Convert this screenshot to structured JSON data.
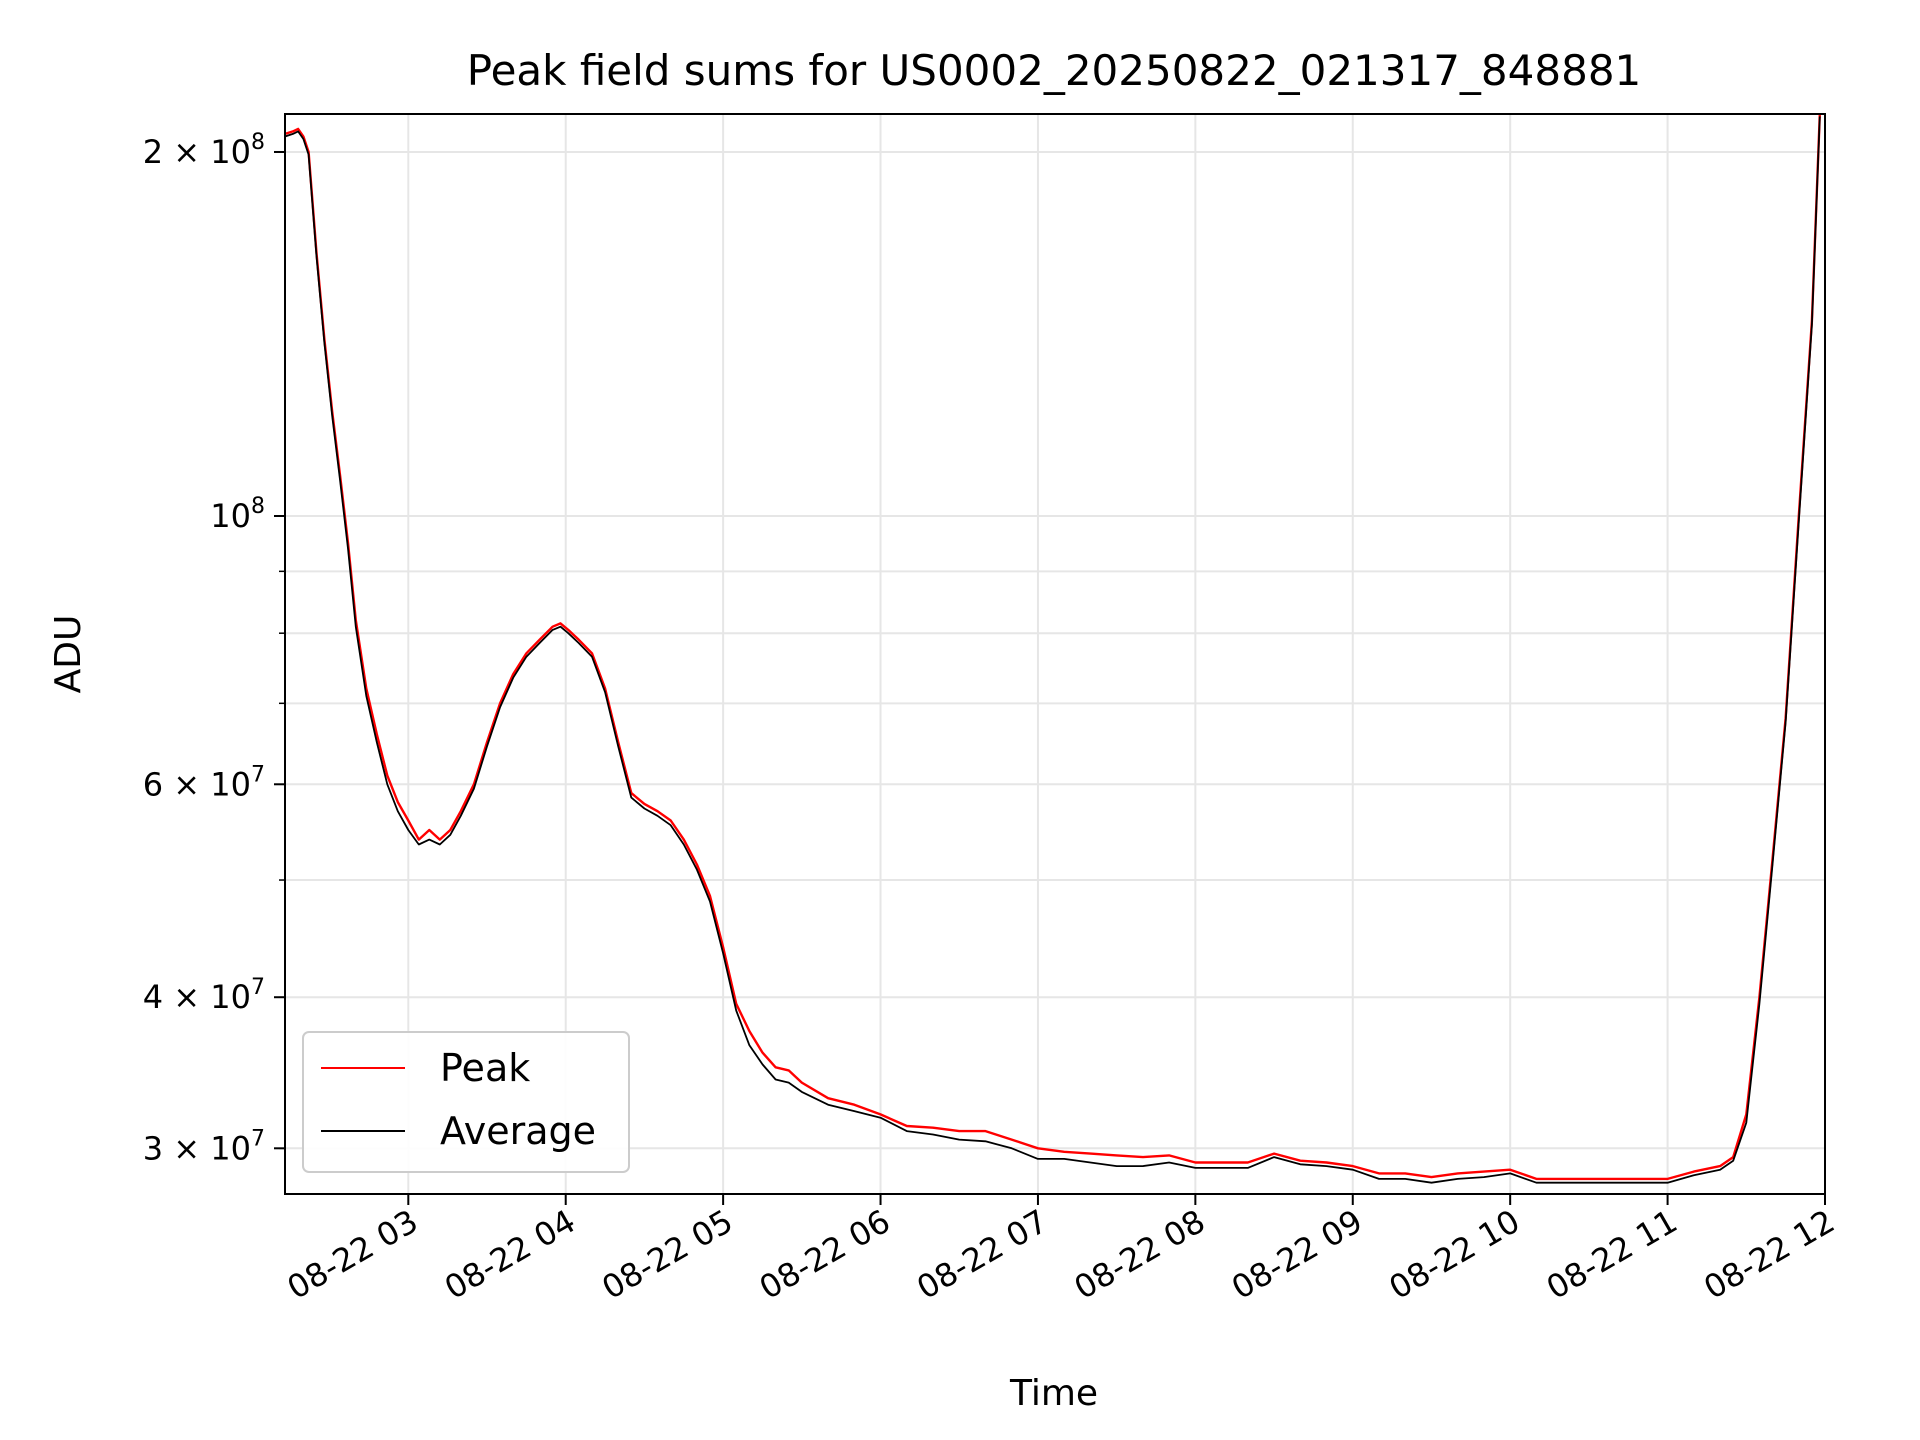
{
  "chart_data": {
    "type": "line",
    "title": "Peak field sums for US0002_20250822_021317_848881",
    "xlabel": "Time",
    "ylabel": "ADU",
    "yscale": "log",
    "grid": true,
    "legend_position": "lower-left",
    "xlim": [
      "2025-08-22 02:13",
      "2025-08-22 12:00"
    ],
    "ylim": [
      27500000,
      215000000
    ],
    "x_ticks": [
      "08-22 03",
      "08-22 04",
      "08-22 05",
      "08-22 06",
      "08-22 07",
      "08-22 08",
      "08-22 09",
      "08-22 10",
      "08-22 11",
      "08-22 12"
    ],
    "y_ticks": [
      {
        "value": 200000000,
        "base": "2 × 10",
        "exp": "8"
      },
      {
        "value": 100000000,
        "base": "10",
        "exp": "8"
      },
      {
        "value": 60000000,
        "base": "6 × 10",
        "exp": "7"
      },
      {
        "value": 40000000,
        "base": "4 × 10",
        "exp": "7"
      },
      {
        "value": 30000000,
        "base": "3 × 10",
        "exp": "7"
      }
    ],
    "x": [
      "02:13",
      "02:16",
      "02:18",
      "02:20",
      "02:22",
      "02:25",
      "02:28",
      "02:31",
      "02:34",
      "02:37",
      "02:40",
      "02:44",
      "02:48",
      "02:52",
      "02:56",
      "03:00",
      "03:04",
      "03:08",
      "03:12",
      "03:16",
      "03:20",
      "03:25",
      "03:30",
      "03:35",
      "03:40",
      "03:45",
      "03:50",
      "03:55",
      "03:58",
      "04:01",
      "04:05",
      "04:10",
      "04:15",
      "04:20",
      "04:25",
      "04:30",
      "04:35",
      "04:40",
      "04:45",
      "04:50",
      "04:55",
      "05:00",
      "05:05",
      "05:10",
      "05:15",
      "05:20",
      "05:25",
      "05:30",
      "05:40",
      "05:50",
      "06:00",
      "06:10",
      "06:20",
      "06:30",
      "06:40",
      "06:50",
      "07:00",
      "07:10",
      "07:20",
      "07:30",
      "07:40",
      "07:50",
      "08:00",
      "08:10",
      "08:20",
      "08:30",
      "08:40",
      "08:50",
      "09:00",
      "09:10",
      "09:20",
      "09:30",
      "09:40",
      "09:50",
      "10:00",
      "10:10",
      "10:20",
      "10:30",
      "10:40",
      "10:50",
      "11:00",
      "11:10",
      "11:20",
      "11:25",
      "11:30",
      "11:35",
      "11:40",
      "11:45",
      "11:50",
      "11:55",
      "11:58"
    ],
    "series": [
      {
        "name": "Peak",
        "color": "#ff0000",
        "values": [
          207000000,
          208000000,
          209000000,
          206000000,
          200000000,
          165000000,
          140000000,
          122000000,
          108000000,
          95000000,
          82000000,
          72000000,
          66000000,
          61000000,
          58000000,
          56000000,
          54000000,
          55000000,
          54000000,
          55000000,
          57000000,
          60000000,
          65000000,
          70000000,
          74000000,
          77000000,
          79000000,
          81000000,
          81500000,
          80500000,
          79000000,
          77000000,
          72000000,
          65000000,
          59000000,
          57800000,
          57000000,
          56000000,
          54000000,
          51500000,
          48500000,
          44000000,
          39500000,
          37500000,
          36000000,
          35000000,
          34800000,
          34000000,
          33000000,
          32600000,
          32000000,
          31300000,
          31200000,
          31000000,
          31000000,
          30500000,
          30000000,
          29800000,
          29700000,
          29600000,
          29500000,
          29600000,
          29200000,
          29200000,
          29200000,
          29700000,
          29300000,
          29200000,
          29000000,
          28600000,
          28600000,
          28400000,
          28600000,
          28700000,
          28800000,
          28300000,
          28300000,
          28300000,
          28300000,
          28300000,
          28300000,
          28700000,
          29000000,
          29500000,
          32000000,
          40000000,
          52000000,
          68000000,
          100000000,
          145000000,
          215000000
        ]
      },
      {
        "name": "Average",
        "color": "#000000",
        "values": [
          206000000,
          207000000,
          208000000,
          205000000,
          199000000,
          164000000,
          139000000,
          121000000,
          107000000,
          94000000,
          81000000,
          71000000,
          65000000,
          60000000,
          57000000,
          55000000,
          53500000,
          54000000,
          53500000,
          54500000,
          56500000,
          59500000,
          64500000,
          69500000,
          73500000,
          76500000,
          78500000,
          80500000,
          81000000,
          80000000,
          78500000,
          76500000,
          71500000,
          64500000,
          58500000,
          57300000,
          56500000,
          55500000,
          53500000,
          51000000,
          48000000,
          43500000,
          39000000,
          36500000,
          35200000,
          34200000,
          34000000,
          33400000,
          32600000,
          32200000,
          31800000,
          31000000,
          30800000,
          30500000,
          30400000,
          30000000,
          29400000,
          29400000,
          29200000,
          29000000,
          29000000,
          29200000,
          28900000,
          28900000,
          28900000,
          29500000,
          29100000,
          29000000,
          28800000,
          28300000,
          28300000,
          28100000,
          28300000,
          28400000,
          28600000,
          28100000,
          28100000,
          28100000,
          28100000,
          28100000,
          28100000,
          28500000,
          28800000,
          29300000,
          31500000,
          39500000,
          51500000,
          67500000,
          99000000,
          144000000,
          214000000
        ]
      }
    ]
  }
}
